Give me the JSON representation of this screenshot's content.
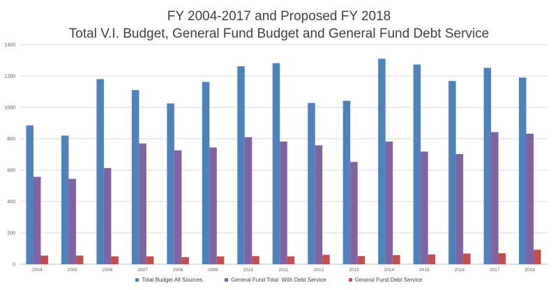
{
  "chart_data": {
    "type": "bar",
    "title": [
      "FY 2004-2017 and Proposed FY 2018",
      "Total V.I. Budget, General Fund Budget and General Fund Debt Service"
    ],
    "xlabel": "",
    "ylabel": "",
    "ylim": [
      0,
      1400
    ],
    "yticks": [
      0,
      200,
      400,
      600,
      800,
      1000,
      1200,
      1400
    ],
    "grid": true,
    "legend_position": "bottom",
    "categories": [
      "2004",
      "2005",
      "2006",
      "2007",
      "2008",
      "2009",
      "2010",
      "2011",
      "2012",
      "2013",
      "2014",
      "2015",
      "2016",
      "2017",
      "2018"
    ],
    "series": [
      {
        "name": "Total Budget All Sources",
        "color": "#4f81bd",
        "values": [
          885,
          820,
          1180,
          1110,
          1025,
          1162,
          1262,
          1282,
          1028,
          1042,
          1310,
          1273,
          1168,
          1252,
          1190
        ]
      },
      {
        "name": "General Fund Total  With Debt Service",
        "color": "#8064a2",
        "values": [
          557,
          544,
          613,
          770,
          726,
          744,
          810,
          782,
          758,
          652,
          782,
          718,
          702,
          842,
          832
        ]
      },
      {
        "name": "General Fund Debt Service",
        "color": "#c0504d",
        "values": [
          55,
          55,
          50,
          50,
          45,
          50,
          52,
          50,
          60,
          52,
          58,
          62,
          68,
          70,
          92
        ]
      }
    ]
  }
}
